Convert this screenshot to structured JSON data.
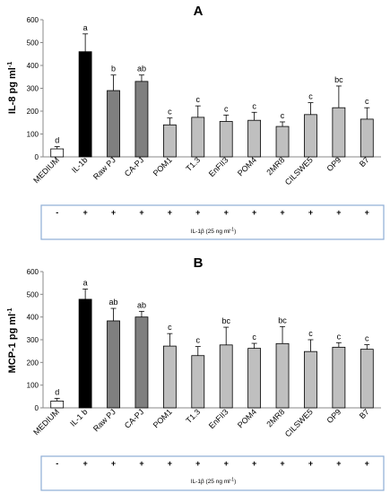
{
  "chart_data": [
    {
      "type": "bar",
      "panel_label": "A",
      "ylabel": "IL-8 pg ml",
      "ylabel_sup": "-1",
      "ylim": [
        0,
        600
      ],
      "yticks": [
        0,
        100,
        200,
        300,
        400,
        500,
        600
      ],
      "categories": [
        "MEDIUM",
        "IL-1b",
        "Raw PJ",
        "CA-PJ",
        "POM1",
        "T1.3",
        "EnFII3",
        "POM4",
        "2MR8",
        "CILSWE5",
        "OP9",
        "B7"
      ],
      "values": [
        35,
        460,
        290,
        330,
        140,
        173,
        155,
        160,
        133,
        185,
        215,
        165
      ],
      "errors": [
        10,
        78,
        68,
        28,
        30,
        50,
        28,
        35,
        20,
        52,
        95,
        50
      ],
      "letters": [
        "d",
        "a",
        "b",
        "ab",
        "c",
        "c",
        "c",
        "c",
        "c",
        "c",
        "bc",
        "c"
      ],
      "colors": [
        "#ffffff",
        "#000000",
        "#7f7f7f",
        "#7f7f7f",
        "#bfbfbf",
        "#bfbfbf",
        "#bfbfbf",
        "#bfbfbf",
        "#bfbfbf",
        "#bfbfbf",
        "#bfbfbf",
        "#bfbfbf"
      ],
      "treatment_signs": [
        "-",
        "+",
        "+",
        "+",
        "+",
        "+",
        "+",
        "+",
        "+",
        "+",
        "+",
        "+"
      ],
      "treatment_label": "IL-1β (25 ng ml",
      "treatment_sup": "-1",
      "treatment_close": ")"
    },
    {
      "type": "bar",
      "panel_label": "B",
      "ylabel": "MCP-1 pg ml",
      "ylabel_sup": "-1",
      "ylim": [
        0,
        600
      ],
      "yticks": [
        0,
        100,
        200,
        300,
        400,
        500,
        600
      ],
      "categories": [
        "MEDIUM",
        "IL-1 b",
        "Raw PJ",
        "CA-PJ",
        "POM1",
        "T1.3",
        "EnFII3",
        "POM4",
        "2MR8",
        "CILSWE5",
        "OP9",
        "B7"
      ],
      "values": [
        30,
        478,
        383,
        400,
        272,
        230,
        277,
        262,
        283,
        248,
        267,
        258
      ],
      "errors": [
        12,
        45,
        55,
        25,
        55,
        40,
        78,
        22,
        75,
        52,
        20,
        20
      ],
      "letters": [
        "d",
        "a",
        "ab",
        "ab",
        "c",
        "c",
        "bc",
        "c",
        "bc",
        "c",
        "c",
        "c"
      ],
      "colors": [
        "#ffffff",
        "#000000",
        "#7f7f7f",
        "#7f7f7f",
        "#bfbfbf",
        "#bfbfbf",
        "#bfbfbf",
        "#bfbfbf",
        "#bfbfbf",
        "#bfbfbf",
        "#bfbfbf",
        "#bfbfbf"
      ],
      "treatment_signs": [
        "-",
        "+",
        "+",
        "+",
        "+",
        "+",
        "+",
        "+",
        "+",
        "+",
        "+",
        "+"
      ],
      "treatment_label": "IL-1β (25 ng ml",
      "treatment_sup": "-1",
      "treatment_close": ")"
    }
  ]
}
